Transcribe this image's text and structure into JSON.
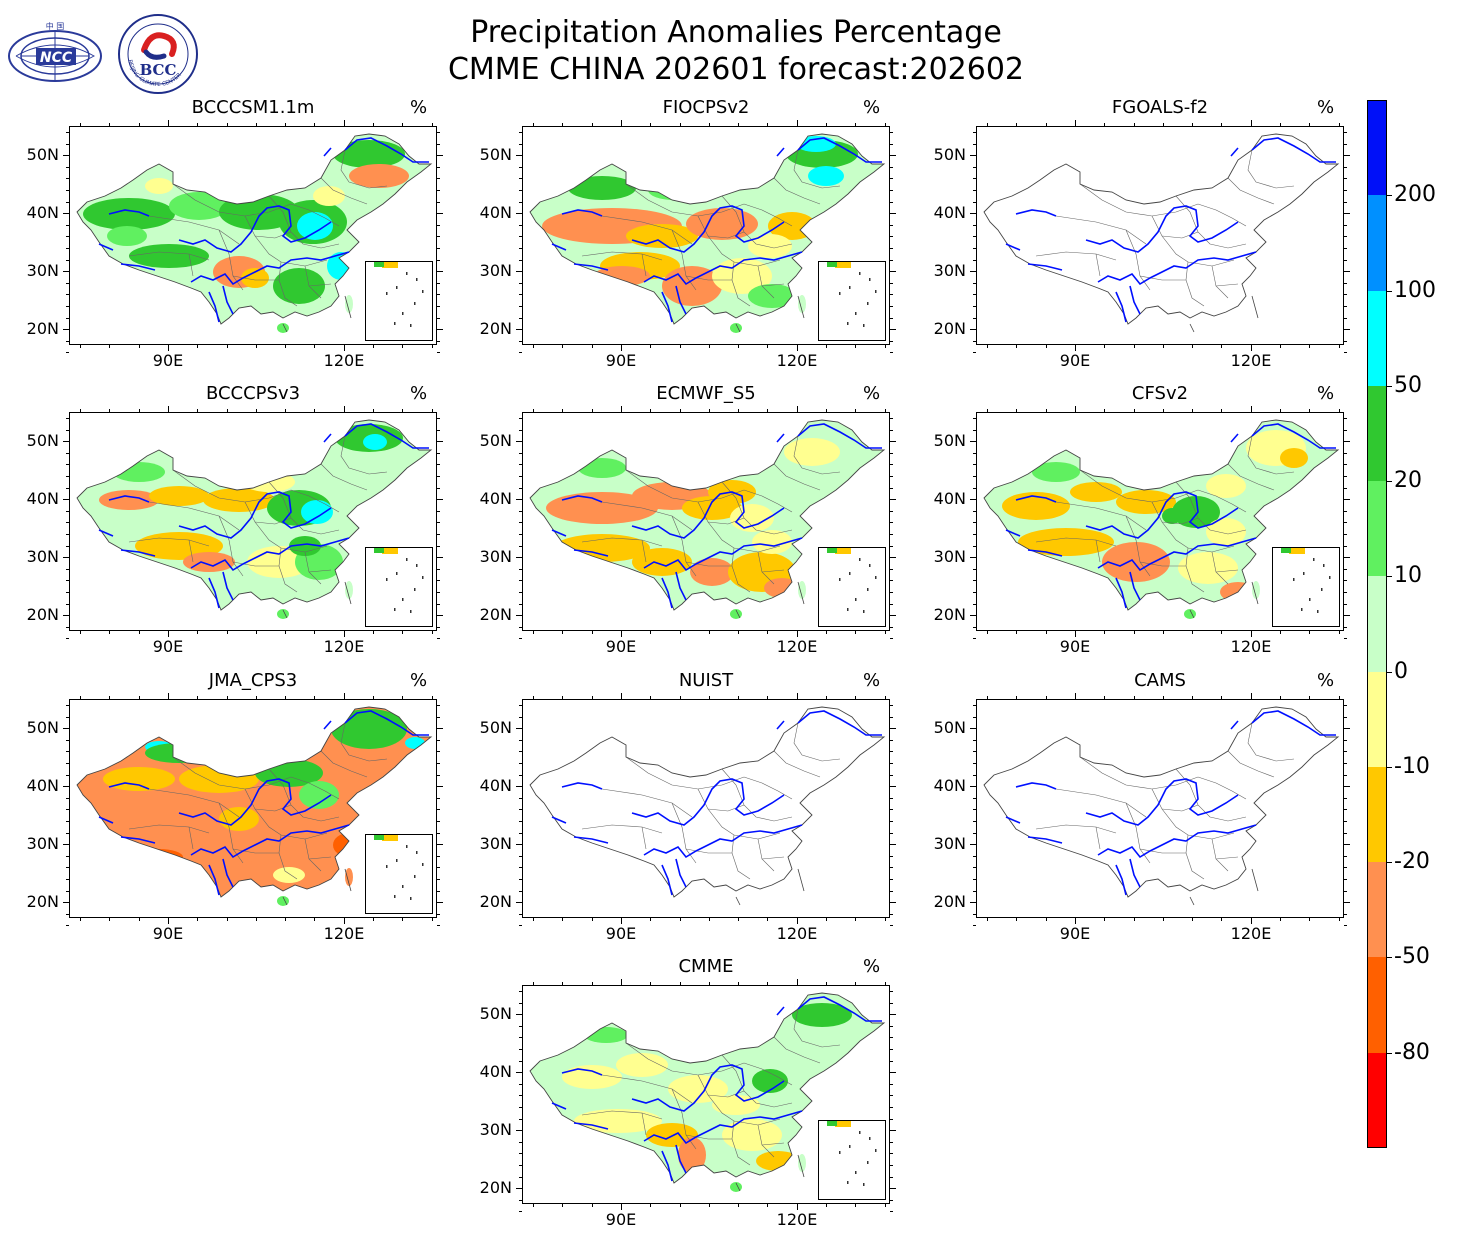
{
  "header": {
    "line1": "Precipitation Anomalies Percentage",
    "line2": "CMME CHINA 202601 forecast:202602"
  },
  "logos": {
    "ncc": {
      "top_text": "中 国",
      "name": "NCC",
      "color": "#2a3a9a"
    },
    "bcc": {
      "name": "BCC",
      "ring_text": "BEIJING CLIMATE CENTER",
      "color": "#1f2e8a",
      "accent": "#d92020"
    }
  },
  "unit": "%",
  "axes": {
    "lat_labels": [
      "50N",
      "40N",
      "30N",
      "20N"
    ],
    "lon_labels": [
      "90E",
      "120E"
    ]
  },
  "panels": [
    {
      "name": "BCCCSM1.1m",
      "theme": "green"
    },
    {
      "name": "FIOCPSv2",
      "theme": "mixed-orange"
    },
    {
      "name": "FGOALS-f2",
      "theme": "empty"
    },
    {
      "name": "BCCCPSv3",
      "theme": "green-mixed"
    },
    {
      "name": "ECMWF_S5",
      "theme": "orange-mixed"
    },
    {
      "name": "CFSv2",
      "theme": "yellow-mixed"
    },
    {
      "name": "JMA_CPS3",
      "theme": "orange"
    },
    {
      "name": "NUIST",
      "theme": "empty"
    },
    {
      "name": "CAMS",
      "theme": "empty"
    },
    {
      "name": "CMME",
      "theme": "light-mixed"
    }
  ],
  "colorbar": {
    "labels": [
      "200",
      "100",
      "50",
      "20",
      "10",
      "0",
      "-10",
      "-20",
      "-50",
      "-80"
    ],
    "colors": [
      "#0010f8",
      "#0090ff",
      "#00ffff",
      "#30c830",
      "#60f060",
      "#c8ffc8",
      "#ffff90",
      "#ffc800",
      "#ff9050",
      "#ff6000",
      "#ff0000"
    ]
  }
}
